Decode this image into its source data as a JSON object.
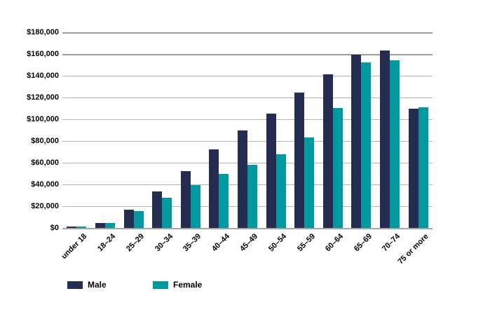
{
  "chart_data": {
    "type": "bar",
    "title": "",
    "xlabel": "",
    "ylabel": "",
    "categories": [
      "under 18",
      "18–24",
      "25–29",
      "30–34",
      "35–39",
      "40–44",
      "45–49",
      "50–54",
      "55–59",
      "60–64",
      "65–69",
      "70–74",
      "75 or more"
    ],
    "series": [
      {
        "name": "Male",
        "color": "#242C52",
        "values": [
          1000,
          4300,
          17000,
          33500,
          52500,
          72500,
          89500,
          105000,
          124500,
          141500,
          159500,
          163000,
          110000
        ]
      },
      {
        "name": "Female",
        "color": "#0099A0",
        "values": [
          1000,
          4300,
          15500,
          28000,
          39500,
          49500,
          58000,
          67500,
          83000,
          110500,
          152500,
          154500,
          111000
        ]
      }
    ],
    "ylim": [
      0,
      180000
    ],
    "ytick_step": 20000,
    "ytick_labels": [
      "$0",
      "$20,000",
      "$40,000",
      "$60,000",
      "$80,000",
      "$100,000",
      "$120,000",
      "$140,000",
      "$160,000",
      "$180,000"
    ],
    "grid": "horizontal",
    "legend_position": "bottom-left"
  },
  "legend": {
    "male_label": "Male",
    "female_label": "Female"
  },
  "colors": {
    "male_bar": "#242C52",
    "female_bar": "#0099A0",
    "gridline": "#b3b3b3",
    "gridline_major": "#9d9d9d",
    "axis_baseline": "#a6a6a6",
    "label_text": "#000000"
  }
}
